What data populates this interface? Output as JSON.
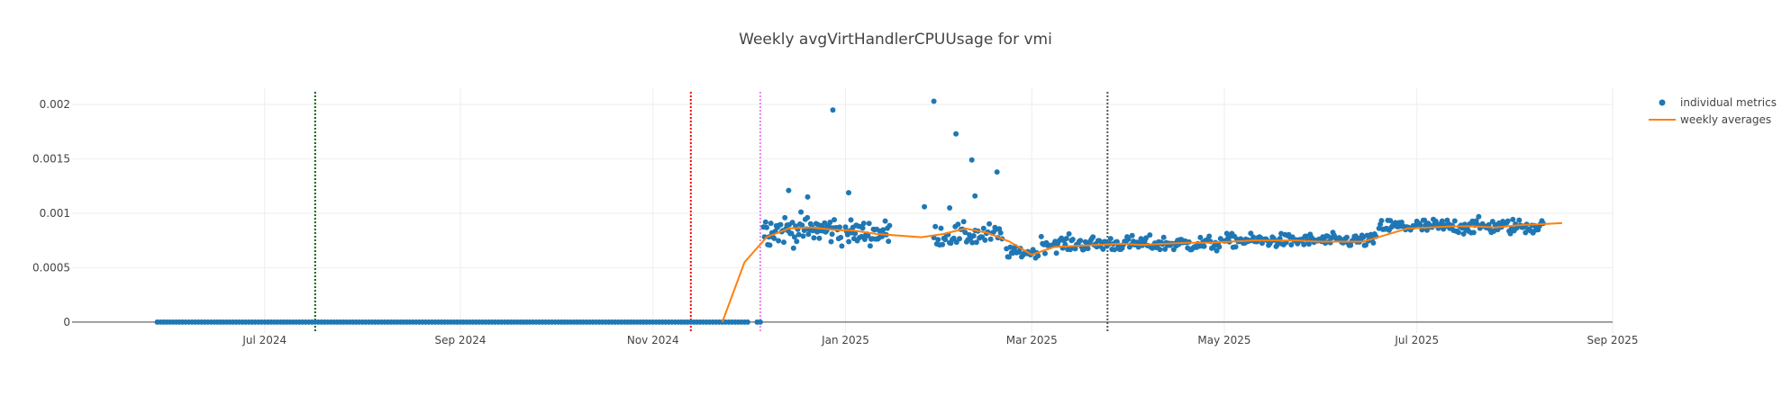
{
  "chart_data": {
    "type": "scatter",
    "title": "Weekly avgVirtHandlerCPUUsage for vmi",
    "xlabel": "",
    "ylabel": "",
    "x_type": "date",
    "xlim": [
      "2024-05-01",
      "2025-09-01"
    ],
    "ylim": [
      -0.0001,
      0.00215
    ],
    "x_ticks": [
      {
        "value": "2024-07-01",
        "label": "Jul 2024"
      },
      {
        "value": "2024-09-01",
        "label": "Sep 2024"
      },
      {
        "value": "2024-11-01",
        "label": "Nov 2024"
      },
      {
        "value": "2025-01-01",
        "label": "Jan 2025"
      },
      {
        "value": "2025-03-01",
        "label": "Mar 2025"
      },
      {
        "value": "2025-05-01",
        "label": "May 2025"
      },
      {
        "value": "2025-07-01",
        "label": "Jul 2025"
      },
      {
        "value": "2025-09-01",
        "label": "Sep 2025"
      }
    ],
    "y_ticks": [
      {
        "value": 0,
        "label": "0"
      },
      {
        "value": 0.0005,
        "label": "0.0005"
      },
      {
        "value": 0.001,
        "label": "0.001"
      },
      {
        "value": 0.0015,
        "label": "0.0015"
      },
      {
        "value": 0.002,
        "label": "0.002"
      }
    ],
    "grid": true,
    "legend_position": "top-right",
    "vertical_lines": [
      {
        "x": "2024-07-17",
        "color": "#006400",
        "style": "dotted"
      },
      {
        "x": "2024-11-13",
        "color": "#ff0000",
        "style": "dotted"
      },
      {
        "x": "2024-12-05",
        "color": "#ee82ee",
        "style": "dotted"
      },
      {
        "x": "2025-03-25",
        "color": "#555555",
        "style": "dotted"
      }
    ],
    "series": [
      {
        "name": "individual metrics",
        "kind": "markers",
        "color": "#1f77b4",
        "segments": [
          {
            "start": "2024-05-28",
            "end": "2024-12-01",
            "step_days": 1,
            "value": 0,
            "noise": 0
          },
          {
            "start": "2024-12-04",
            "end": "2024-12-05",
            "step_days": 1,
            "value": 0,
            "noise": 0
          },
          {
            "start": "2024-12-06",
            "end": "2024-12-31",
            "step_days": 0.34,
            "value": 0.00085,
            "noise": 0.00013
          },
          {
            "start": "2025-01-01",
            "end": "2025-01-15",
            "step_days": 0.34,
            "value": 0.00082,
            "noise": 0.00011
          },
          {
            "start": "2025-01-29",
            "end": "2025-02-20",
            "step_days": 0.45,
            "value": 0.0008,
            "noise": 0.0001
          },
          {
            "start": "2025-02-21",
            "end": "2025-03-03",
            "step_days": 0.4,
            "value": 0.00064,
            "noise": 5e-05
          },
          {
            "start": "2025-03-04",
            "end": "2025-04-30",
            "step_days": 0.4,
            "value": 0.00072,
            "noise": 7e-05
          },
          {
            "start": "2025-05-01",
            "end": "2025-06-18",
            "step_days": 0.4,
            "value": 0.00075,
            "noise": 6e-05
          },
          {
            "start": "2025-06-19",
            "end": "2025-08-10",
            "step_days": 0.4,
            "value": 0.00088,
            "noise": 7e-05
          }
        ],
        "points": [
          {
            "x": "2024-12-28",
            "y": 0.00195
          },
          {
            "x": "2025-01-29",
            "y": 0.00203
          },
          {
            "x": "2025-02-05",
            "y": 0.00173
          },
          {
            "x": "2025-02-10",
            "y": 0.00149
          },
          {
            "x": "2025-02-11",
            "y": 0.00116
          },
          {
            "x": "2025-02-18",
            "y": 0.00138
          },
          {
            "x": "2024-12-14",
            "y": 0.00121
          },
          {
            "x": "2024-12-20",
            "y": 0.00115
          },
          {
            "x": "2025-01-02",
            "y": 0.00119
          },
          {
            "x": "2025-01-26",
            "y": 0.00106
          },
          {
            "x": "2025-02-03",
            "y": 0.00105
          }
        ]
      },
      {
        "name": "weekly averages",
        "kind": "line",
        "color": "#ff7f0e",
        "points": [
          {
            "x": "2024-11-23",
            "y": 0
          },
          {
            "x": "2024-11-30",
            "y": 0.00055
          },
          {
            "x": "2024-12-07",
            "y": 0.00078
          },
          {
            "x": "2024-12-14",
            "y": 0.00086
          },
          {
            "x": "2024-12-21",
            "y": 0.00087
          },
          {
            "x": "2024-12-28",
            "y": 0.00085
          },
          {
            "x": "2025-01-04",
            "y": 0.00084
          },
          {
            "x": "2025-01-11",
            "y": 0.00081
          },
          {
            "x": "2025-01-25",
            "y": 0.00078
          },
          {
            "x": "2025-02-01",
            "y": 0.00081
          },
          {
            "x": "2025-02-08",
            "y": 0.00086
          },
          {
            "x": "2025-02-15",
            "y": 0.00082
          },
          {
            "x": "2025-02-22",
            "y": 0.00074
          },
          {
            "x": "2025-03-01",
            "y": 0.00062
          },
          {
            "x": "2025-03-08",
            "y": 0.00069
          },
          {
            "x": "2025-03-15",
            "y": 0.0007
          },
          {
            "x": "2025-03-22",
            "y": 0.00071
          },
          {
            "x": "2025-03-29",
            "y": 0.00072
          },
          {
            "x": "2025-04-05",
            "y": 0.00071
          },
          {
            "x": "2025-04-12",
            "y": 0.00072
          },
          {
            "x": "2025-04-19",
            "y": 0.00073
          },
          {
            "x": "2025-04-26",
            "y": 0.00073
          },
          {
            "x": "2025-05-03",
            "y": 0.00074
          },
          {
            "x": "2025-05-10",
            "y": 0.00075
          },
          {
            "x": "2025-05-17",
            "y": 0.00075
          },
          {
            "x": "2025-05-24",
            "y": 0.00075
          },
          {
            "x": "2025-05-31",
            "y": 0.00074
          },
          {
            "x": "2025-06-07",
            "y": 0.00074
          },
          {
            "x": "2025-06-14",
            "y": 0.00074
          },
          {
            "x": "2025-06-21",
            "y": 0.0008
          },
          {
            "x": "2025-06-28",
            "y": 0.00086
          },
          {
            "x": "2025-07-05",
            "y": 0.00087
          },
          {
            "x": "2025-07-12",
            "y": 0.00088
          },
          {
            "x": "2025-07-19",
            "y": 0.00088
          },
          {
            "x": "2025-07-26",
            "y": 0.00087
          },
          {
            "x": "2025-08-02",
            "y": 0.00089
          },
          {
            "x": "2025-08-09",
            "y": 0.0009
          },
          {
            "x": "2025-08-16",
            "y": 0.00091
          }
        ]
      }
    ]
  }
}
